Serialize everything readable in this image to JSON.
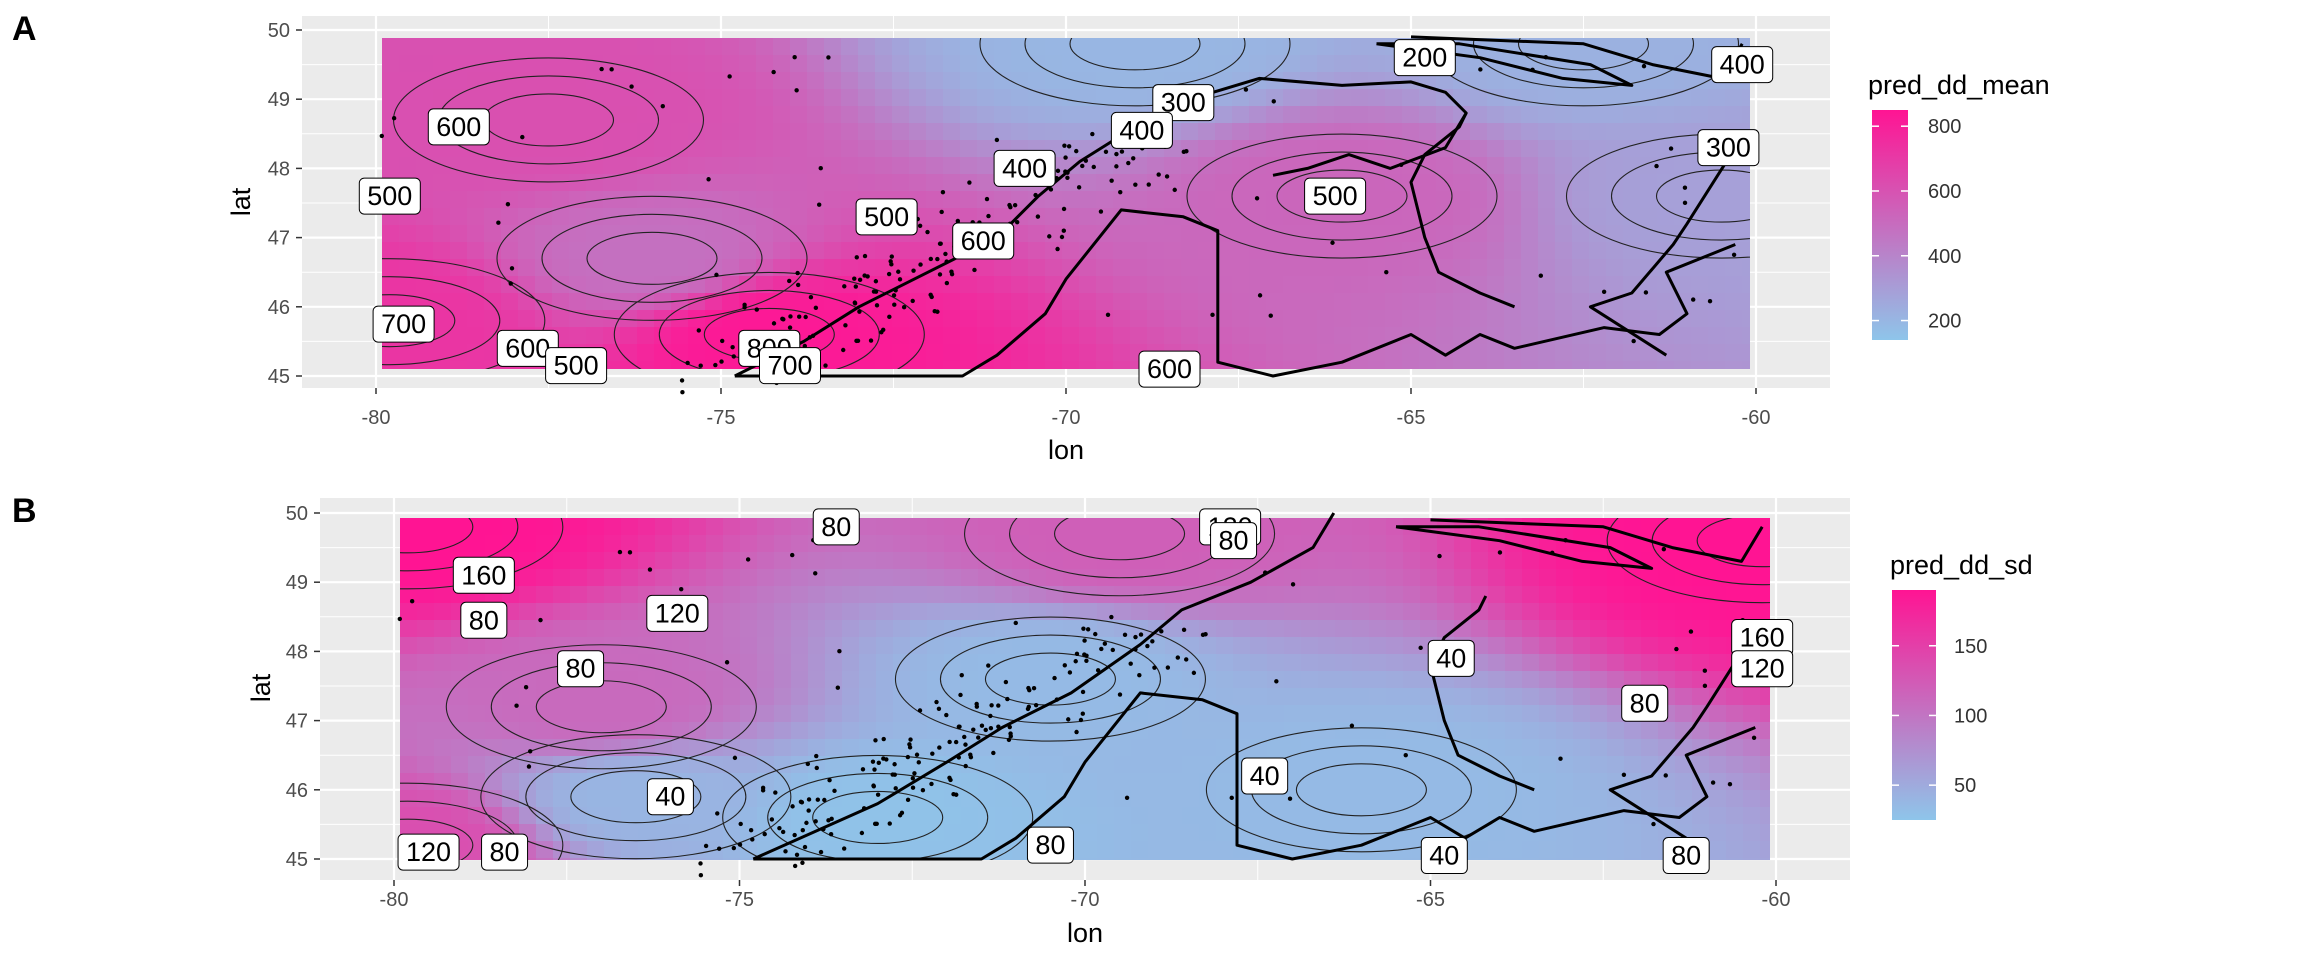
{
  "figure": {
    "panels": [
      "A",
      "B"
    ]
  },
  "chart_data": [
    {
      "panel": "A",
      "type": "heatmap",
      "title": "",
      "xlabel": "lon",
      "ylabel": "lat",
      "xlim": [
        -81,
        -59.5
      ],
      "ylim": [
        44.8,
        50.2
      ],
      "xticks": [
        "-80",
        "-75",
        "-70",
        "-65",
        "-60"
      ],
      "yticks": [
        "45",
        "46",
        "47",
        "48",
        "49",
        "50"
      ],
      "grid": true,
      "legend": {
        "title": "pred_dd_mean",
        "placement": "right",
        "ticks": [
          "200",
          "400",
          "600",
          "800"
        ],
        "range": [
          140,
          850
        ],
        "low_color": "#8ec5ea",
        "high_color": "#ff1493"
      },
      "field_centers": [
        {
          "lon": -74.3,
          "lat": 45.6,
          "value": 830
        },
        {
          "lon": -79.8,
          "lat": 45.8,
          "value": 720
        },
        {
          "lon": -77.5,
          "lat": 48.7,
          "value": 610
        },
        {
          "lon": -76.0,
          "lat": 46.7,
          "value": 480
        },
        {
          "lon": -69.0,
          "lat": 49.8,
          "value": 200
        },
        {
          "lon": -62.5,
          "lat": 49.8,
          "value": 220
        },
        {
          "lon": -60.5,
          "lat": 47.6,
          "value": 290
        },
        {
          "lon": -66.0,
          "lat": 47.6,
          "value": 520
        }
      ],
      "contour_labels": [
        {
          "text": "600",
          "lon": -78.8,
          "lat": 48.6
        },
        {
          "text": "500",
          "lon": -79.8,
          "lat": 47.6
        },
        {
          "text": "700",
          "lon": -79.6,
          "lat": 45.75
        },
        {
          "text": "600",
          "lon": -77.8,
          "lat": 45.4
        },
        {
          "text": "500",
          "lon": -77.1,
          "lat": 45.15
        },
        {
          "text": "800",
          "lon": -74.3,
          "lat": 45.4
        },
        {
          "text": "700",
          "lon": -74.0,
          "lat": 45.15
        },
        {
          "text": "500",
          "lon": -72.6,
          "lat": 47.3
        },
        {
          "text": "600",
          "lon": -71.2,
          "lat": 46.95
        },
        {
          "text": "400",
          "lon": -70.6,
          "lat": 48.0
        },
        {
          "text": "300",
          "lon": -68.3,
          "lat": 48.95
        },
        {
          "text": "400",
          "lon": -68.9,
          "lat": 48.55
        },
        {
          "text": "200",
          "lon": -64.8,
          "lat": 49.6
        },
        {
          "text": "400",
          "lon": -60.2,
          "lat": 49.5
        },
        {
          "text": "300",
          "lon": -60.4,
          "lat": 48.3
        },
        {
          "text": "500",
          "lon": -66.1,
          "lat": 47.6
        },
        {
          "text": "600",
          "lon": -68.5,
          "lat": 45.1
        }
      ]
    },
    {
      "panel": "B",
      "type": "heatmap",
      "title": "",
      "xlabel": "lon",
      "ylabel": "lat",
      "xlim": [
        -81,
        -59.5
      ],
      "ylim": [
        44.8,
        50.2
      ],
      "xticks": [
        "-80",
        "-75",
        "-70",
        "-65",
        "-60"
      ],
      "yticks": [
        "45",
        "46",
        "47",
        "48",
        "49",
        "50"
      ],
      "grid": true,
      "legend": {
        "title": "pred_dd_sd",
        "placement": "right",
        "ticks": [
          "50",
          "100",
          "150"
        ],
        "range": [
          25,
          190
        ],
        "low_color": "#8ec5ea",
        "high_color": "#ff1493"
      },
      "field_centers": [
        {
          "lon": -79.8,
          "lat": 49.8,
          "value": 190
        },
        {
          "lon": -60.2,
          "lat": 49.6,
          "value": 190
        },
        {
          "lon": -77.0,
          "lat": 47.2,
          "value": 110
        },
        {
          "lon": -79.8,
          "lat": 45.2,
          "value": 135
        },
        {
          "lon": -73.0,
          "lat": 45.6,
          "value": 28
        },
        {
          "lon": -70.5,
          "lat": 47.6,
          "value": 35
        },
        {
          "lon": -66.0,
          "lat": 46.0,
          "value": 35
        },
        {
          "lon": -76.5,
          "lat": 45.9,
          "value": 40
        },
        {
          "lon": -69.5,
          "lat": 49.7,
          "value": 120
        }
      ],
      "contour_labels": [
        {
          "text": "80",
          "lon": -73.6,
          "lat": 49.8
        },
        {
          "text": "120",
          "lon": -67.9,
          "lat": 49.8
        },
        {
          "text": "80",
          "lon": -67.85,
          "lat": 49.6
        },
        {
          "text": "160",
          "lon": -78.7,
          "lat": 49.1
        },
        {
          "text": "80",
          "lon": -78.7,
          "lat": 48.45
        },
        {
          "text": "120",
          "lon": -75.9,
          "lat": 48.55
        },
        {
          "text": "80",
          "lon": -77.3,
          "lat": 47.75
        },
        {
          "text": "40",
          "lon": -64.7,
          "lat": 47.9
        },
        {
          "text": "160",
          "lon": -60.2,
          "lat": 48.2
        },
        {
          "text": "120",
          "lon": -60.2,
          "lat": 47.75
        },
        {
          "text": "80",
          "lon": -61.9,
          "lat": 47.25
        },
        {
          "text": "40",
          "lon": -67.4,
          "lat": 46.2
        },
        {
          "text": "40",
          "lon": -76.0,
          "lat": 45.9
        },
        {
          "text": "120",
          "lon": -79.5,
          "lat": 45.1
        },
        {
          "text": "80",
          "lon": -78.4,
          "lat": 45.1
        },
        {
          "text": "80",
          "lon": -70.5,
          "lat": 45.2
        },
        {
          "text": "40",
          "lon": -64.8,
          "lat": 45.05
        },
        {
          "text": "80",
          "lon": -61.3,
          "lat": 45.05
        }
      ]
    }
  ]
}
